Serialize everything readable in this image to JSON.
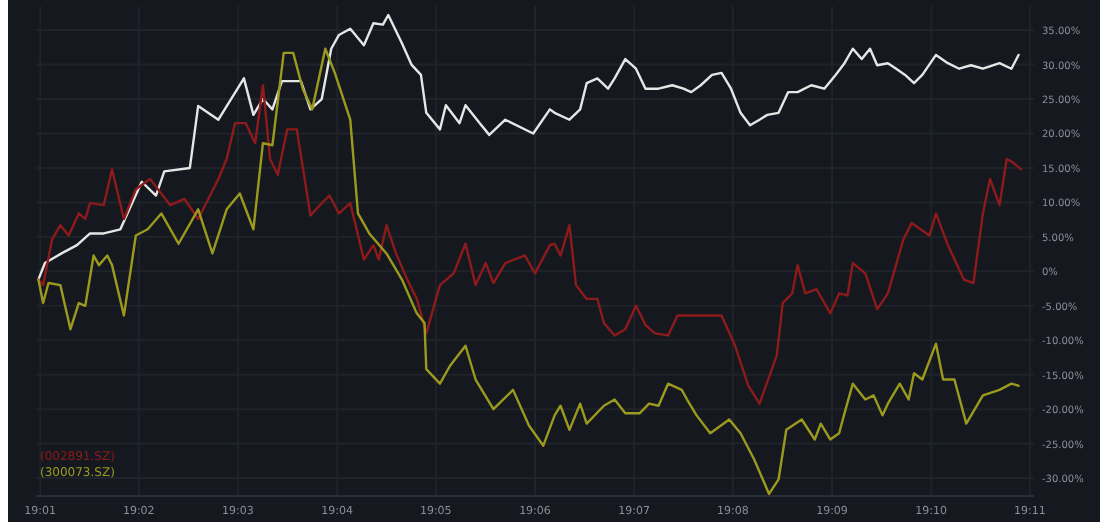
{
  "chart_data": {
    "type": "line",
    "xlim": [
      19.016,
      19.184
    ],
    "ylim": [
      -32.6,
      38.5
    ],
    "xticks": [
      {
        "value": 19.0167,
        "label": "19:01"
      },
      {
        "value": 19.0333,
        "label": "19:02"
      },
      {
        "value": 19.05,
        "label": "19:03"
      },
      {
        "value": 19.0667,
        "label": "19:04"
      },
      {
        "value": 19.0833,
        "label": "19:05"
      },
      {
        "value": 19.1,
        "label": "19:06"
      },
      {
        "value": 19.1167,
        "label": "19:07"
      },
      {
        "value": 19.1333,
        "label": "19:08"
      },
      {
        "value": 19.15,
        "label": "19:09"
      },
      {
        "value": 19.1667,
        "label": "19:10"
      },
      {
        "value": 19.1833,
        "label": "19:11"
      }
    ],
    "yticks": [
      {
        "value": 35,
        "label": "35.00%"
      },
      {
        "value": 30,
        "label": "30.00%"
      },
      {
        "value": 25,
        "label": "25.00%"
      },
      {
        "value": 20,
        "label": "20.00%"
      },
      {
        "value": 15,
        "label": "15.00%"
      },
      {
        "value": 10,
        "label": "10.00%"
      },
      {
        "value": 5,
        "label": "5.00%"
      },
      {
        "value": 0,
        "label": "0%"
      },
      {
        "value": -5,
        "label": "-5.00%"
      },
      {
        "value": -10,
        "label": "-10.00%"
      },
      {
        "value": -15,
        "label": "-15.00%"
      },
      {
        "value": -20,
        "label": "-20.00%"
      },
      {
        "value": -25,
        "label": "-25.00%"
      },
      {
        "value": -30,
        "label": "-30.00%"
      }
    ],
    "grid": true,
    "legend": "bottom left",
    "line_style": "solid",
    "marker": "none",
    "series": [
      {
        "color": "#e6e6e6",
        "x": [
          19.0164,
          19.0175,
          19.0203,
          19.0229,
          19.0251,
          19.0274,
          19.0302,
          19.0338,
          19.0362,
          19.0376,
          19.0419,
          19.0433,
          19.0467,
          19.051,
          19.0526,
          19.0542,
          19.0558,
          19.0574,
          19.0606,
          19.0622,
          19.0641,
          19.0657,
          19.067,
          19.0689,
          19.0712,
          19.0728,
          19.0744,
          19.0753,
          19.0776,
          19.0792,
          19.0808,
          19.0817,
          19.084,
          19.085,
          19.0873,
          19.0883,
          19.0907,
          19.0923,
          19.095,
          19.0997,
          19.1025,
          19.1033,
          19.1058,
          19.1076,
          19.1087,
          19.1105,
          19.1123,
          19.1134,
          19.1152,
          19.117,
          19.1186,
          19.1208,
          19.1231,
          19.125,
          19.1263,
          19.1279,
          19.1298,
          19.1314,
          19.133,
          19.1346,
          19.1362,
          19.1378,
          19.1391,
          19.141,
          19.1426,
          19.1442,
          19.1465,
          19.1487,
          19.1506,
          19.1521,
          19.1535,
          19.155,
          19.1564,
          19.1576,
          19.1594,
          19.1608,
          19.1623,
          19.1638,
          19.1652,
          19.1675,
          19.1695,
          19.1714,
          19.1734,
          19.1754,
          19.1782,
          19.1802,
          19.1814
        ],
        "values": [
          -1.2,
          1.2,
          2.6,
          3.8,
          5.5,
          5.5,
          6.1,
          13,
          11,
          14.5,
          15,
          24,
          22,
          28,
          22.7,
          25,
          23.5,
          27.6,
          27.6,
          23.5,
          25,
          32.3,
          34.3,
          35.2,
          32.8,
          36,
          35.8,
          37.2,
          33.1,
          30,
          28.5,
          23,
          20.6,
          24.1,
          21.5,
          24.1,
          21.5,
          19.8,
          22,
          20,
          23.5,
          23,
          22,
          23.5,
          27.3,
          28,
          26.5,
          28,
          30.8,
          29.4,
          26.5,
          26.5,
          27,
          26.5,
          26,
          27,
          28.5,
          28.8,
          26.5,
          23,
          21.2,
          22,
          22.7,
          23,
          26,
          26,
          27,
          26.5,
          28.5,
          30.2,
          32.3,
          30.8,
          32.3,
          29.9,
          30.2,
          29.4,
          28.5,
          27.3,
          28.5,
          31.4,
          30.2,
          29.4,
          29.9,
          29.4,
          30.2,
          29.4,
          31.4
        ]
      },
      {
        "name": "(002891.SZ)",
        "color": "#8e1b1b",
        "x": [
          19.0164,
          19.0172,
          19.0187,
          19.0201,
          19.0215,
          19.0232,
          19.0243,
          19.0251,
          19.0274,
          19.0288,
          19.0308,
          19.0328,
          19.0352,
          19.0386,
          19.041,
          19.0433,
          19.0467,
          19.0481,
          19.0495,
          19.0513,
          19.0529,
          19.0542,
          19.0554,
          19.0567,
          19.0583,
          19.0599,
          19.0622,
          19.0638,
          19.0654,
          19.067,
          19.0689,
          19.0712,
          19.0728,
          19.0737,
          19.075,
          19.0766,
          19.0785,
          19.0801,
          19.0817,
          19.084,
          19.0863,
          19.0883,
          19.09,
          19.0917,
          19.093,
          19.095,
          19.0983,
          19.1,
          19.1025,
          19.1033,
          19.1043,
          19.1058,
          19.1069,
          19.1087,
          19.1105,
          19.1116,
          19.1134,
          19.1152,
          19.117,
          19.1186,
          19.1202,
          19.1224,
          19.124,
          19.1314,
          19.1337,
          19.1359,
          19.1378,
          19.1407,
          19.1417,
          19.1433,
          19.1442,
          19.1455,
          19.1474,
          19.1497,
          19.1512,
          19.1526,
          19.1535,
          19.1556,
          19.1576,
          19.1594,
          19.162,
          19.1634,
          19.1664,
          19.1675,
          19.1695,
          19.1722,
          19.1738,
          19.1754,
          19.1766,
          19.1782,
          19.1794,
          19.1806,
          19.1818
        ],
        "values": [
          -1.2,
          -2,
          4.6,
          6.7,
          5.2,
          8.4,
          7.6,
          9.9,
          9.6,
          14.8,
          7.6,
          11.9,
          13.4,
          9.6,
          10.5,
          7.6,
          13.4,
          16.3,
          21.5,
          21.5,
          18.6,
          27,
          16.3,
          14,
          20.6,
          20.6,
          8.1,
          9.6,
          11,
          8.4,
          9.9,
          1.7,
          3.8,
          1.7,
          6.7,
          2.6,
          -1.2,
          -4,
          -9,
          -2,
          -0.3,
          4,
          -2,
          1.2,
          -1.7,
          1.2,
          2.3,
          -0.3,
          3.8,
          4,
          2.3,
          6.7,
          -2,
          -4,
          -4,
          -7.5,
          -9.3,
          -8.4,
          -5,
          -7.8,
          -9,
          -9.3,
          -6.4,
          -6.4,
          -10.8,
          -16.6,
          -19.2,
          -12.2,
          -4.6,
          -3.2,
          0.9,
          -3.2,
          -2.6,
          -6.1,
          -3.2,
          -3.5,
          1.2,
          -0.3,
          -5.5,
          -3.2,
          4.6,
          7,
          5.2,
          8.4,
          3.8,
          -1.2,
          -1.7,
          8.4,
          13.4,
          9.6,
          16.3,
          15.7,
          14.8
        ]
      },
      {
        "name": "(300073.SZ)",
        "color": "#9c9a1e",
        "x": [
          19.0164,
          19.0172,
          19.0181,
          19.0201,
          19.0218,
          19.0232,
          19.0243,
          19.0257,
          19.0266,
          19.028,
          19.0288,
          19.0308,
          19.0328,
          19.0348,
          19.0371,
          19.04,
          19.0433,
          19.0457,
          19.0481,
          19.0503,
          19.0526,
          19.0542,
          19.0558,
          19.0577,
          19.0593,
          19.0609,
          19.0625,
          19.0647,
          19.0663,
          19.0689,
          19.0702,
          19.0721,
          19.075,
          19.0776,
          19.0801,
          19.0814,
          19.0817,
          19.084,
          19.0857,
          19.0883,
          19.09,
          19.093,
          19.0963,
          19.099,
          19.1014,
          19.1033,
          19.1043,
          19.1058,
          19.1076,
          19.1087,
          19.1116,
          19.1134,
          19.1152,
          19.1176,
          19.1192,
          19.1208,
          19.1224,
          19.1247,
          19.1256,
          19.1272,
          19.1295,
          19.1327,
          19.1346,
          19.1369,
          19.1394,
          19.141,
          19.1423,
          19.1449,
          19.1471,
          19.1481,
          19.1497,
          19.1512,
          19.1521,
          19.1535,
          19.1556,
          19.157,
          19.1585,
          19.1594,
          19.1614,
          19.1629,
          19.1638,
          19.1652,
          19.1675,
          19.1687,
          19.1706,
          19.1726,
          19.1754,
          19.1782,
          19.1802,
          19.1814
        ],
        "values": [
          -1.2,
          -4.6,
          -1.7,
          -2,
          -8.4,
          -4.6,
          -5,
          2.3,
          0.9,
          2.3,
          0.9,
          -6.4,
          5.2,
          6.1,
          8.4,
          4,
          9,
          2.6,
          9,
          11.3,
          6.1,
          18.6,
          18.3,
          31.7,
          31.7,
          26.5,
          23.5,
          32.3,
          28.8,
          22,
          8.4,
          5.5,
          2.6,
          -1.2,
          -6.1,
          -7.5,
          -14.2,
          -16.3,
          -13.7,
          -10.8,
          -15.7,
          -20,
          -17.2,
          -22.4,
          -25.3,
          -20.9,
          -19.5,
          -23,
          -19.2,
          -22.1,
          -19.5,
          -18.6,
          -20.6,
          -20.6,
          -19.2,
          -19.5,
          -16.3,
          -17.2,
          -18.6,
          -20.9,
          -23.5,
          -21.5,
          -23.5,
          -27.3,
          -32.3,
          -30.2,
          -23,
          -21.5,
          -24.4,
          -22.1,
          -24.4,
          -23.5,
          -20.6,
          -16.3,
          -18.6,
          -18,
          -20.9,
          -19.2,
          -16.3,
          -18.6,
          -14.8,
          -15.7,
          -10.5,
          -15.7,
          -15.7,
          -22.1,
          -18,
          -17.2,
          -16.3,
          -16.6
        ]
      }
    ]
  }
}
